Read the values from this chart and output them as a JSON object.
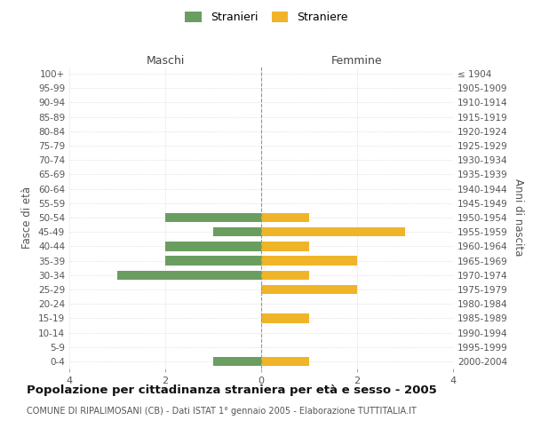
{
  "age_groups": [
    "100+",
    "95-99",
    "90-94",
    "85-89",
    "80-84",
    "75-79",
    "70-74",
    "65-69",
    "60-64",
    "55-59",
    "50-54",
    "45-49",
    "40-44",
    "35-39",
    "30-34",
    "25-29",
    "20-24",
    "15-19",
    "10-14",
    "5-9",
    "0-4"
  ],
  "birth_years": [
    "≤ 1904",
    "1905-1909",
    "1910-1914",
    "1915-1919",
    "1920-1924",
    "1925-1929",
    "1930-1934",
    "1935-1939",
    "1940-1944",
    "1945-1949",
    "1950-1954",
    "1955-1959",
    "1960-1964",
    "1965-1969",
    "1970-1974",
    "1975-1979",
    "1980-1984",
    "1985-1989",
    "1990-1994",
    "1995-1999",
    "2000-2004"
  ],
  "maschi": [
    0,
    0,
    0,
    0,
    0,
    0,
    0,
    0,
    0,
    0,
    2,
    1,
    2,
    2,
    3,
    0,
    0,
    0,
    0,
    0,
    1
  ],
  "femmine": [
    0,
    0,
    0,
    0,
    0,
    0,
    0,
    0,
    0,
    0,
    1,
    3,
    1,
    2,
    1,
    2,
    0,
    1,
    0,
    0,
    1
  ],
  "color_maschi": "#6a9e5f",
  "color_femmine": "#f0b429",
  "title": "Popolazione per cittadinanza straniera per età e sesso - 2005",
  "subtitle": "COMUNE DI RIPALIMOSANI (CB) - Dati ISTAT 1° gennaio 2005 - Elaborazione TUTTITALIA.IT",
  "xlabel_left": "Maschi",
  "xlabel_right": "Femmine",
  "ylabel_left": "Fasce di età",
  "ylabel_right": "Anni di nascita",
  "legend_stranieri": "Stranieri",
  "legend_straniere": "Straniere",
  "xlim": 4,
  "background_color": "#ffffff",
  "grid_color": "#cccccc"
}
